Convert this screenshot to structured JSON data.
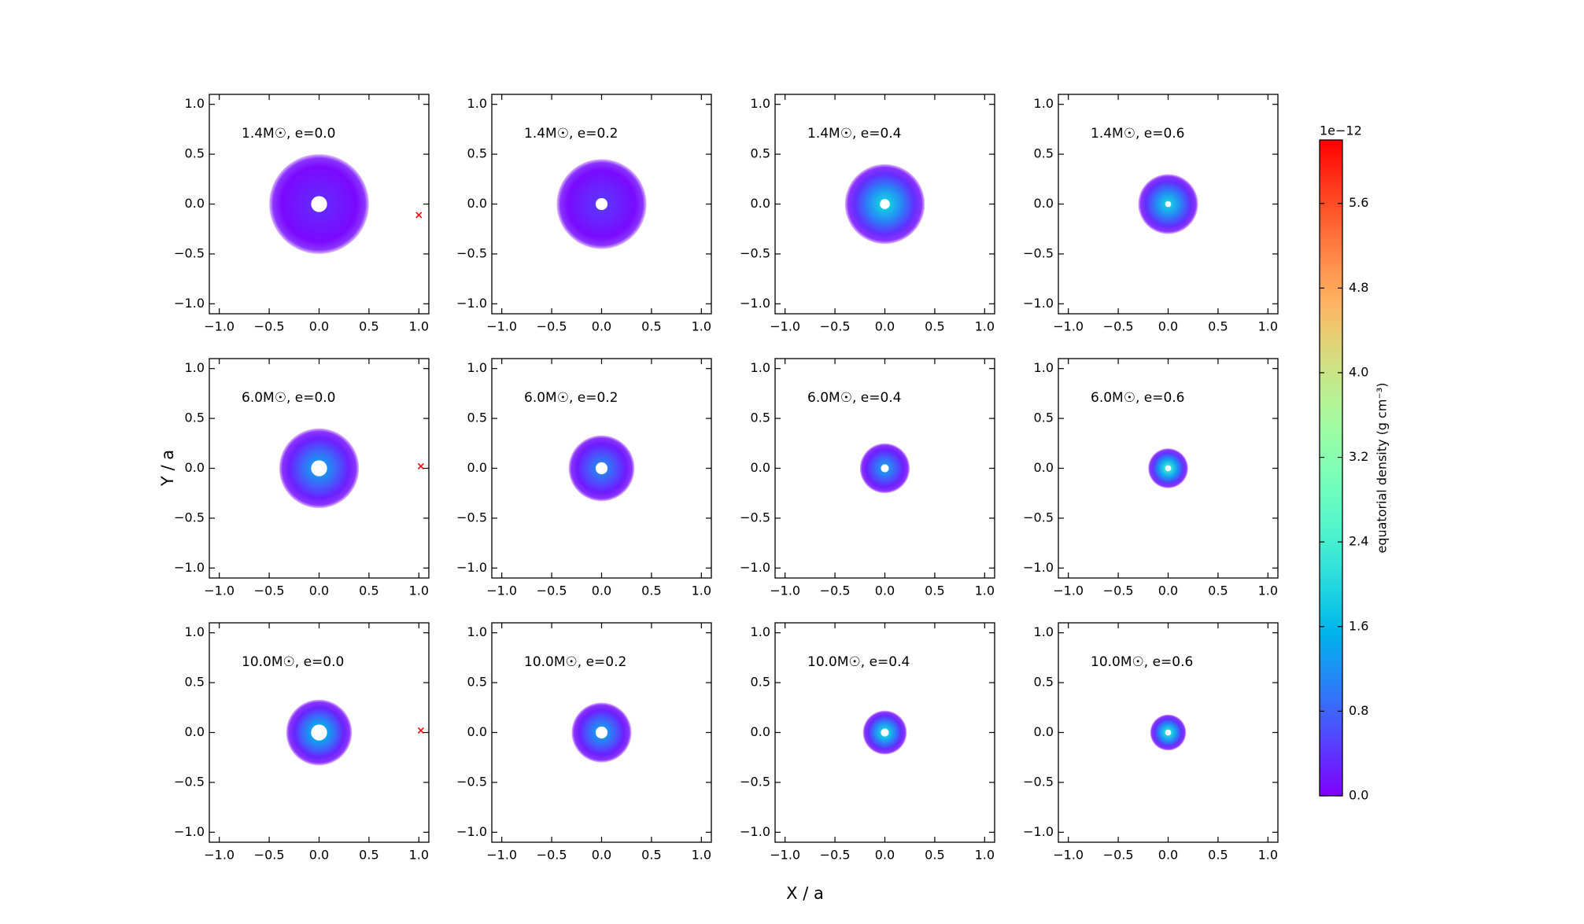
{
  "figure": {
    "xlabel": "X / a",
    "ylabel": "Y / a"
  },
  "colorbar": {
    "label": "equatorial density (g cm⁻³)",
    "offset": "1e−12",
    "clim": [
      0,
      6.2
    ],
    "ticks": [
      {
        "value": 0,
        "label": "0.0"
      },
      0.8,
      1.6,
      2.4,
      3.2,
      {
        "value": 4,
        "label": "4.0"
      },
      4.8,
      5.6
    ],
    "colormap": "rainbow"
  },
  "chart_data": [
    {
      "type": "disk",
      "annotation": "1.4M☉, e=0.0",
      "xlim": [
        -1.1,
        1.1
      ],
      "ylim": [
        -1.1,
        1.1
      ],
      "xticks": [
        {
          "value": -1,
          "label": "−1.0"
        },
        {
          "value": -0.5,
          "label": "−0.5"
        },
        {
          "value": 0,
          "label": "0.0"
        },
        0.5,
        {
          "value": 1,
          "label": "1.0"
        }
      ],
      "yticks": [
        {
          "value": -1,
          "label": "−1.0"
        },
        {
          "value": -0.5,
          "label": "−0.5"
        },
        {
          "value": 0,
          "label": "0.0"
        },
        0.5,
        {
          "value": 1,
          "label": "1.0"
        }
      ],
      "disk": {
        "x": 0,
        "y": 0,
        "radius": 0.5,
        "hole": 0.08,
        "peak": 0.3
      },
      "companion": {
        "x": 1.0,
        "y": -0.11,
        "color": "#ff0000"
      }
    },
    {
      "type": "disk",
      "annotation": "1.4M☉, e=0.2",
      "xlim": [
        -1.1,
        1.1
      ],
      "ylim": [
        -1.1,
        1.1
      ],
      "xticks": [
        {
          "value": -1,
          "label": "−1.0"
        },
        {
          "value": -0.5,
          "label": "−0.5"
        },
        {
          "value": 0,
          "label": "0.0"
        },
        0.5,
        {
          "value": 1,
          "label": "1.0"
        }
      ],
      "yticks": [
        {
          "value": -1,
          "label": "−1.0"
        },
        {
          "value": -0.5,
          "label": "−0.5"
        },
        {
          "value": 0,
          "label": "0.0"
        },
        0.5,
        {
          "value": 1,
          "label": "1.0"
        }
      ],
      "disk": {
        "x": 0,
        "y": 0,
        "radius": 0.45,
        "hole": 0.06,
        "peak": 0.4
      }
    },
    {
      "type": "disk",
      "annotation": "1.4M☉, e=0.4",
      "xlim": [
        -1.1,
        1.1
      ],
      "ylim": [
        -1.1,
        1.1
      ],
      "xticks": [
        {
          "value": -1,
          "label": "−1.0"
        },
        {
          "value": -0.5,
          "label": "−0.5"
        },
        {
          "value": 0,
          "label": "0.0"
        },
        0.5,
        {
          "value": 1,
          "label": "1.0"
        }
      ],
      "yticks": [
        {
          "value": -1,
          "label": "−1.0"
        },
        {
          "value": -0.5,
          "label": "−0.5"
        },
        {
          "value": 0,
          "label": "0.0"
        },
        0.5,
        {
          "value": 1,
          "label": "1.0"
        }
      ],
      "disk": {
        "x": 0,
        "y": 0,
        "radius": 0.4,
        "hole": 0.05,
        "peak": 1.8
      }
    },
    {
      "type": "disk",
      "annotation": "1.4M☉, e=0.6",
      "xlim": [
        -1.1,
        1.1
      ],
      "ylim": [
        -1.1,
        1.1
      ],
      "xticks": [
        {
          "value": -1,
          "label": "−1.0"
        },
        {
          "value": -0.5,
          "label": "−0.5"
        },
        {
          "value": 0,
          "label": "0.0"
        },
        0.5,
        {
          "value": 1,
          "label": "1.0"
        }
      ],
      "yticks": [
        {
          "value": -1,
          "label": "−1.0"
        },
        {
          "value": -0.5,
          "label": "−0.5"
        },
        {
          "value": 0,
          "label": "0.0"
        },
        0.5,
        {
          "value": 1,
          "label": "1.0"
        }
      ],
      "disk": {
        "x": 0,
        "y": 0,
        "radius": 0.3,
        "hole": 0.03,
        "peak": 1.8
      }
    },
    {
      "type": "disk",
      "annotation": "6.0M☉, e=0.0",
      "xlim": [
        -1.1,
        1.1
      ],
      "ylim": [
        -1.1,
        1.1
      ],
      "xticks": [
        {
          "value": -1,
          "label": "−1.0"
        },
        {
          "value": -0.5,
          "label": "−0.5"
        },
        {
          "value": 0,
          "label": "0.0"
        },
        0.5,
        {
          "value": 1,
          "label": "1.0"
        }
      ],
      "yticks": [
        {
          "value": -1,
          "label": "−1.0"
        },
        {
          "value": -0.5,
          "label": "−0.5"
        },
        {
          "value": 0,
          "label": "0.0"
        },
        0.5,
        {
          "value": 1,
          "label": "1.0"
        }
      ],
      "disk": {
        "x": 0,
        "y": 0,
        "radius": 0.4,
        "hole": 0.08,
        "peak": 1.2
      },
      "companion": {
        "x": 1.02,
        "y": 0.02,
        "color": "#ff0000"
      }
    },
    {
      "type": "disk",
      "annotation": "6.0M☉, e=0.2",
      "xlim": [
        -1.1,
        1.1
      ],
      "ylim": [
        -1.1,
        1.1
      ],
      "xticks": [
        {
          "value": -1,
          "label": "−1.0"
        },
        {
          "value": -0.5,
          "label": "−0.5"
        },
        {
          "value": 0,
          "label": "0.0"
        },
        0.5,
        {
          "value": 1,
          "label": "1.0"
        }
      ],
      "yticks": [
        {
          "value": -1,
          "label": "−1.0"
        },
        {
          "value": -0.5,
          "label": "−0.5"
        },
        {
          "value": 0,
          "label": "0.0"
        },
        0.5,
        {
          "value": 1,
          "label": "1.0"
        }
      ],
      "disk": {
        "x": 0,
        "y": 0,
        "radius": 0.33,
        "hole": 0.06,
        "peak": 1.0
      }
    },
    {
      "type": "disk",
      "annotation": "6.0M☉, e=0.4",
      "xlim": [
        -1.1,
        1.1
      ],
      "ylim": [
        -1.1,
        1.1
      ],
      "xticks": [
        {
          "value": -1,
          "label": "−1.0"
        },
        {
          "value": -0.5,
          "label": "−0.5"
        },
        {
          "value": 0,
          "label": "0.0"
        },
        0.5,
        {
          "value": 1,
          "label": "1.0"
        }
      ],
      "yticks": [
        {
          "value": -1,
          "label": "−1.0"
        },
        {
          "value": -0.5,
          "label": "−0.5"
        },
        {
          "value": 0,
          "label": "0.0"
        },
        0.5,
        {
          "value": 1,
          "label": "1.0"
        }
      ],
      "disk": {
        "x": 0,
        "y": 0,
        "radius": 0.25,
        "hole": 0.04,
        "peak": 1.2
      }
    },
    {
      "type": "disk",
      "annotation": "6.0M☉, e=0.6",
      "xlim": [
        -1.1,
        1.1
      ],
      "ylim": [
        -1.1,
        1.1
      ],
      "xticks": [
        {
          "value": -1,
          "label": "−1.0"
        },
        {
          "value": -0.5,
          "label": "−0.5"
        },
        {
          "value": 0,
          "label": "0.0"
        },
        0.5,
        {
          "value": 1,
          "label": "1.0"
        }
      ],
      "yticks": [
        {
          "value": -1,
          "label": "−1.0"
        },
        {
          "value": -0.5,
          "label": "−0.5"
        },
        {
          "value": 0,
          "label": "0.0"
        },
        0.5,
        {
          "value": 1,
          "label": "1.0"
        }
      ],
      "disk": {
        "x": 0,
        "y": 0,
        "radius": 0.2,
        "hole": 0.03,
        "peak": 2.2
      }
    },
    {
      "type": "disk",
      "annotation": "10.0M☉, e=0.0",
      "xlim": [
        -1.1,
        1.1
      ],
      "ylim": [
        -1.1,
        1.1
      ],
      "xticks": [
        {
          "value": -1,
          "label": "−1.0"
        },
        {
          "value": -0.5,
          "label": "−0.5"
        },
        {
          "value": 0,
          "label": "0.0"
        },
        0.5,
        {
          "value": 1,
          "label": "1.0"
        }
      ],
      "yticks": [
        {
          "value": -1,
          "label": "−1.0"
        },
        {
          "value": -0.5,
          "label": "−0.5"
        },
        {
          "value": 0,
          "label": "0.0"
        },
        0.5,
        {
          "value": 1,
          "label": "1.0"
        }
      ],
      "disk": {
        "x": 0,
        "y": 0,
        "radius": 0.33,
        "hole": 0.08,
        "peak": 1.4
      },
      "companion": {
        "x": 1.02,
        "y": 0.02,
        "color": "#ff0000"
      }
    },
    {
      "type": "disk",
      "annotation": "10.0M☉, e=0.2",
      "xlim": [
        -1.1,
        1.1
      ],
      "ylim": [
        -1.1,
        1.1
      ],
      "xticks": [
        {
          "value": -1,
          "label": "−1.0"
        },
        {
          "value": -0.5,
          "label": "−0.5"
        },
        {
          "value": 0,
          "label": "0.0"
        },
        0.5,
        {
          "value": 1,
          "label": "1.0"
        }
      ],
      "yticks": [
        {
          "value": -1,
          "label": "−1.0"
        },
        {
          "value": -0.5,
          "label": "−0.5"
        },
        {
          "value": 0,
          "label": "0.0"
        },
        0.5,
        {
          "value": 1,
          "label": "1.0"
        }
      ],
      "disk": {
        "x": 0,
        "y": 0,
        "radius": 0.3,
        "hole": 0.06,
        "peak": 1.2
      }
    },
    {
      "type": "disk",
      "annotation": "10.0M☉, e=0.4",
      "xlim": [
        -1.1,
        1.1
      ],
      "ylim": [
        -1.1,
        1.1
      ],
      "xticks": [
        {
          "value": -1,
          "label": "−1.0"
        },
        {
          "value": -0.5,
          "label": "−0.5"
        },
        {
          "value": 0,
          "label": "0.0"
        },
        0.5,
        {
          "value": 1,
          "label": "1.0"
        }
      ],
      "yticks": [
        {
          "value": -1,
          "label": "−1.0"
        },
        {
          "value": -0.5,
          "label": "−0.5"
        },
        {
          "value": 0,
          "label": "0.0"
        },
        0.5,
        {
          "value": 1,
          "label": "1.0"
        }
      ],
      "disk": {
        "x": 0,
        "y": 0,
        "radius": 0.22,
        "hole": 0.04,
        "peak": 1.8
      }
    },
    {
      "type": "disk",
      "annotation": "10.0M☉, e=0.6",
      "xlim": [
        -1.1,
        1.1
      ],
      "ylim": [
        -1.1,
        1.1
      ],
      "xticks": [
        {
          "value": -1,
          "label": "−1.0"
        },
        {
          "value": -0.5,
          "label": "−0.5"
        },
        {
          "value": 0,
          "label": "0.0"
        },
        0.5,
        {
          "value": 1,
          "label": "1.0"
        }
      ],
      "yticks": [
        {
          "value": -1,
          "label": "−1.0"
        },
        {
          "value": -0.5,
          "label": "−0.5"
        },
        {
          "value": 0,
          "label": "0.0"
        },
        0.5,
        {
          "value": 1,
          "label": "1.0"
        }
      ],
      "disk": {
        "x": 0,
        "y": 0,
        "radius": 0.18,
        "hole": 0.03,
        "peak": 2.0
      }
    }
  ]
}
